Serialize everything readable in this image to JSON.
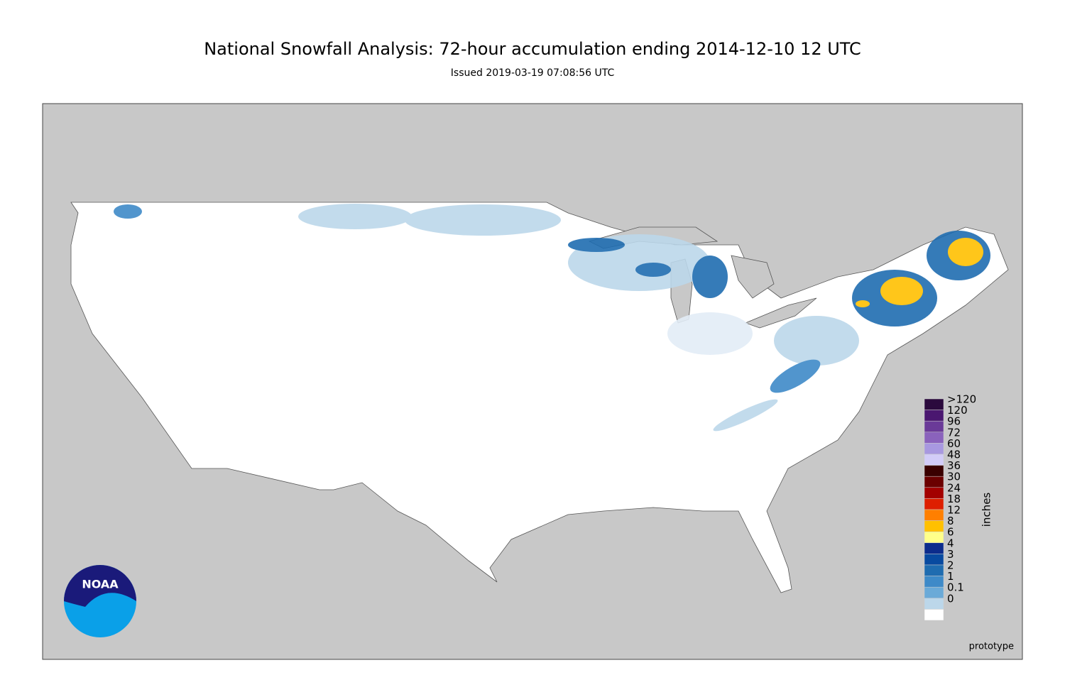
{
  "header": {
    "title": "National Snowfall Analysis: 72-hour accumulation ending 2014-12-10 12 UTC",
    "subtitle": "Issued 2019-03-19 07:08:56 UTC"
  },
  "legend": {
    "units": "inches",
    "items": [
      {
        "label": ">120",
        "color": "#2b0a3d"
      },
      {
        "label": "120",
        "color": "#4a1770"
      },
      {
        "label": "96",
        "color": "#6a3a98"
      },
      {
        "label": "72",
        "color": "#8a62bc"
      },
      {
        "label": "60",
        "color": "#a898e0"
      },
      {
        "label": "48",
        "color": "#d2ccf8"
      },
      {
        "label": "36",
        "color": "#3a0000"
      },
      {
        "label": "30",
        "color": "#6b0000"
      },
      {
        "label": "24",
        "color": "#a30000"
      },
      {
        "label": "18",
        "color": "#de1f00"
      },
      {
        "label": "12",
        "color": "#ff7f00"
      },
      {
        "label": "8",
        "color": "#ffc000"
      },
      {
        "label": "6",
        "color": "#ffff8a"
      },
      {
        "label": "4",
        "color": "#0c2c8c"
      },
      {
        "label": "3",
        "color": "#084aa0"
      },
      {
        "label": "2",
        "color": "#1f6cb0"
      },
      {
        "label": "1",
        "color": "#3e8ac8"
      },
      {
        "label": "0.1",
        "color": "#6aaad8"
      },
      {
        "label": "0",
        "color": "#bcd7ea"
      },
      {
        "label": "",
        "color": "#ffffff"
      }
    ]
  },
  "footer": {
    "note": "prototype",
    "logo": "NOAA"
  }
}
